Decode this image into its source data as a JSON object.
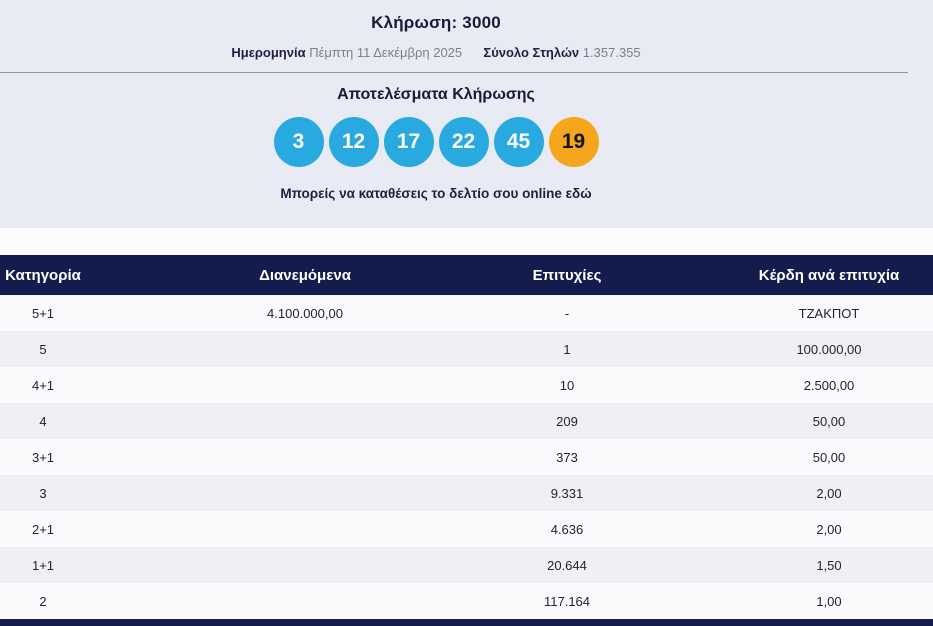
{
  "draw": {
    "title": "Κλήρωση: 3000",
    "date_label": "Ημερομηνία",
    "date_value": "Πέμπτη 11 Δεκέμβρη 2025",
    "columns_label": "Σύνολο Στηλών",
    "columns_value": "1.357.355"
  },
  "results": {
    "title": "Αποτελέσματα Κλήρωσης",
    "numbers": [
      "3",
      "12",
      "17",
      "22",
      "45"
    ],
    "bonus": "19",
    "deposit_prefix": "Μπορείς να καταθέσεις το δελτίο σου online",
    "deposit_link": "εδώ"
  },
  "prize_table": {
    "headers": [
      "Κατηγορία",
      "Διανεμόμενα",
      "Επιτυχίες",
      "Κέρδη ανά επιτυχία"
    ],
    "rows": [
      [
        "5+1",
        "4.100.000,00",
        "-",
        "ΤΖΑΚΠΟΤ"
      ],
      [
        "5",
        "",
        "1",
        "100.000,00"
      ],
      [
        "4+1",
        "",
        "10",
        "2.500,00"
      ],
      [
        "4",
        "",
        "209",
        "50,00"
      ],
      [
        "3+1",
        "",
        "373",
        "50,00"
      ],
      [
        "3",
        "",
        "9.331",
        "2,00"
      ],
      [
        "2+1",
        "",
        "4.636",
        "2,00"
      ],
      [
        "1+1",
        "",
        "20.644",
        "1,50"
      ],
      [
        "2",
        "",
        "117.164",
        "1,00"
      ]
    ]
  },
  "colors": {
    "page_bg": "#e9ebf4",
    "ball_blue": "#28a9e0",
    "ball_bonus_orange": "#f5a61d",
    "header_navy": "#141b4d",
    "meta_gray": "#7b8089"
  }
}
